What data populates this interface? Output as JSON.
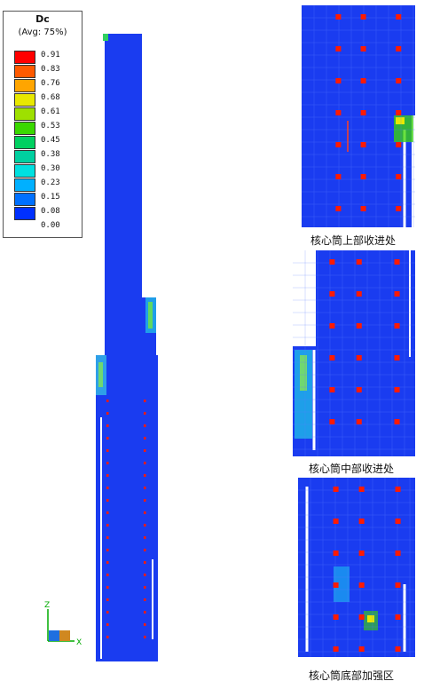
{
  "legend": {
    "title": "Dc",
    "subtitle": "(Avg: 75%)",
    "ticks": [
      "0.91",
      "0.83",
      "0.76",
      "0.68",
      "0.61",
      "0.53",
      "0.45",
      "0.38",
      "0.30",
      "0.23",
      "0.15",
      "0.08",
      "0.00"
    ],
    "colors": [
      "#ff0000",
      "#ff5a00",
      "#ffa500",
      "#e8e800",
      "#9ee000",
      "#3ad800",
      "#00d060",
      "#00d0a0",
      "#00e0e0",
      "#00b0ff",
      "#0070ff",
      "#0030ff",
      "#0000e0"
    ]
  },
  "captions": {
    "upper": "核心筒上部收进处",
    "middle": "核心筒中部收进处",
    "bottom": "核心筒底部加强区"
  },
  "axis": {
    "z": "Z",
    "x": "X"
  },
  "colors": {
    "base": "#1a3cf0",
    "light": "#2b58f4",
    "damage": "#ff1a00",
    "line": "#5a7cff",
    "white": "#ffffff"
  }
}
